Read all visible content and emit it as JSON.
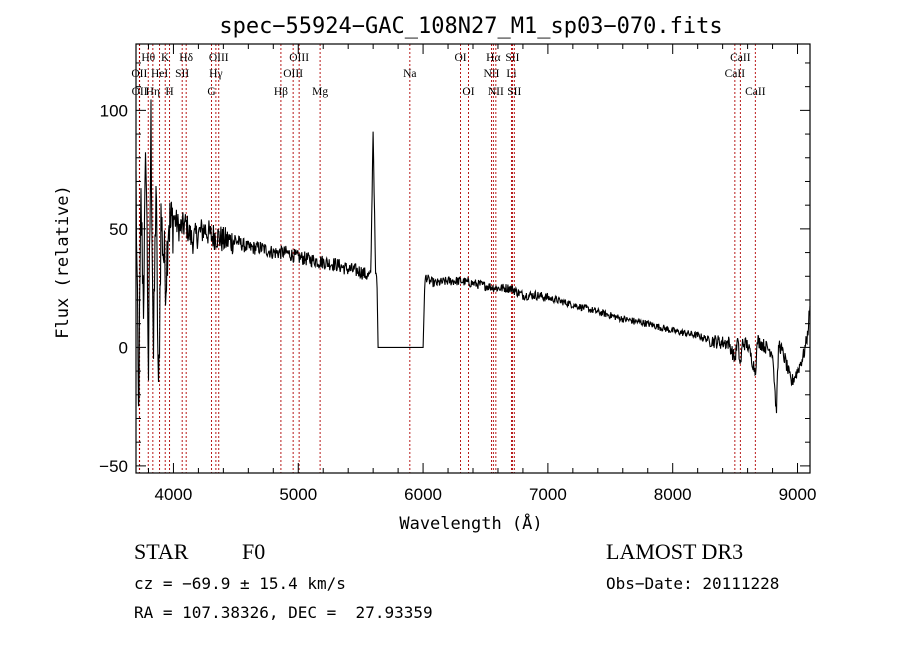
{
  "chart_data": {
    "type": "line",
    "title": "spec−55924−GAC_108N27_M1_sp03−070.fits",
    "xlabel": "Wavelength (Å)",
    "ylabel": "Flux (relative)",
    "xlim": [
      3700,
      9100
    ],
    "ylim": [
      -53,
      128
    ],
    "xticks": [
      4000,
      5000,
      6000,
      7000,
      8000,
      9000
    ],
    "xtick_labels": [
      "4000",
      "5000",
      "6000",
      "7000",
      "8000",
      "9000"
    ],
    "yticks": [
      -50,
      0,
      50,
      100
    ],
    "ytick_labels": [
      "−50",
      "0",
      "50",
      "100"
    ],
    "spectral_lines": [
      {
        "label": "OII",
        "wavelength": 3727,
        "row": 2
      },
      {
        "label": "OII",
        "wavelength": 3729,
        "row": 3
      },
      {
        "label": "Hθ",
        "wavelength": 3798,
        "row": 1
      },
      {
        "label": "Hη",
        "wavelength": 3835,
        "row": 3
      },
      {
        "label": "HeI",
        "wavelength": 3889,
        "row": 2
      },
      {
        "label": "K",
        "wavelength": 3934,
        "row": 1
      },
      {
        "label": "H",
        "wavelength": 3969,
        "row": 3
      },
      {
        "label": "SII",
        "wavelength": 4070,
        "row": 2
      },
      {
        "label": "Hδ",
        "wavelength": 4102,
        "row": 1
      },
      {
        "label": "G",
        "wavelength": 4305,
        "row": 3
      },
      {
        "label": "Hγ",
        "wavelength": 4340,
        "row": 2
      },
      {
        "label": "OIII",
        "wavelength": 4363,
        "row": 1
      },
      {
        "label": "Hβ",
        "wavelength": 4861,
        "row": 3
      },
      {
        "label": "OIII",
        "wavelength": 4959,
        "row": 2
      },
      {
        "label": "OIII",
        "wavelength": 5007,
        "row": 1
      },
      {
        "label": "Mg",
        "wavelength": 5175,
        "row": 3
      },
      {
        "label": "Na",
        "wavelength": 5894,
        "row": 2
      },
      {
        "label": "OI",
        "wavelength": 6300,
        "row": 1
      },
      {
        "label": "OI",
        "wavelength": 6364,
        "row": 3
      },
      {
        "label": "NII",
        "wavelength": 6548,
        "row": 2
      },
      {
        "label": "Hα",
        "wavelength": 6563,
        "row": 1
      },
      {
        "label": "NII",
        "wavelength": 6583,
        "row": 3
      },
      {
        "label": "Li",
        "wavelength": 6708,
        "row": 2
      },
      {
        "label": "SII",
        "wavelength": 6716,
        "row": 1
      },
      {
        "label": "SII",
        "wavelength": 6731,
        "row": 3
      },
      {
        "label": "CaII",
        "wavelength": 8498,
        "row": 2
      },
      {
        "label": "CaII",
        "wavelength": 8542,
        "row": 1
      },
      {
        "label": "CaII",
        "wavelength": 8662,
        "row": 3
      }
    ],
    "spectrum": {
      "name": "flux",
      "x": [
        3700,
        3720,
        3740,
        3760,
        3780,
        3800,
        3820,
        3840,
        3860,
        3880,
        3900,
        3920,
        3940,
        3960,
        3980,
        4000,
        4050,
        4100,
        4150,
        4200,
        4250,
        4300,
        4350,
        4400,
        4500,
        4600,
        4700,
        4800,
        4900,
        5000,
        5100,
        5200,
        5300,
        5400,
        5500,
        5560,
        5580,
        5590,
        5600,
        5620,
        5630,
        5640,
        6000,
        6010,
        6020,
        6050,
        6100,
        6200,
        6300,
        6400,
        6500,
        6600,
        6700,
        6800,
        6900,
        7000,
        7200,
        7400,
        7600,
        7800,
        8000,
        8100,
        8200,
        8300,
        8400,
        8450,
        8498,
        8520,
        8542,
        8560,
        8600,
        8662,
        8680,
        8700,
        8750,
        8800,
        8830,
        8850,
        8900,
        8950,
        9000,
        9050,
        9080,
        9100
      ],
      "y": [
        70,
        -30,
        60,
        20,
        85,
        -10,
        95,
        -5,
        70,
        -25,
        55,
        40,
        30,
        55,
        50,
        55,
        50,
        52,
        45,
        48,
        50,
        47,
        47,
        45,
        45,
        42,
        42,
        40,
        40,
        38,
        37,
        36,
        35,
        33,
        32,
        30,
        30,
        60,
        92,
        30,
        30,
        0,
        0,
        22,
        30,
        28,
        27,
        28,
        28,
        27,
        26,
        25,
        25,
        22,
        22,
        21,
        18,
        15,
        12,
        10,
        7,
        6,
        5,
        3,
        2,
        2,
        -5,
        3,
        -8,
        2,
        1,
        -10,
        3,
        2,
        0,
        -2,
        -28,
        2,
        -5,
        -15,
        -10,
        -3,
        5,
        18
      ]
    }
  },
  "info": {
    "object_class": "STAR",
    "subclass": "F0",
    "survey": "LAMOST DR3",
    "cz": "cz = −69.9 ± 15.4 km/s",
    "obs_date": "Obs−Date: 20111228",
    "coords": "RA = 107.38326, DEC =  27.93359"
  }
}
